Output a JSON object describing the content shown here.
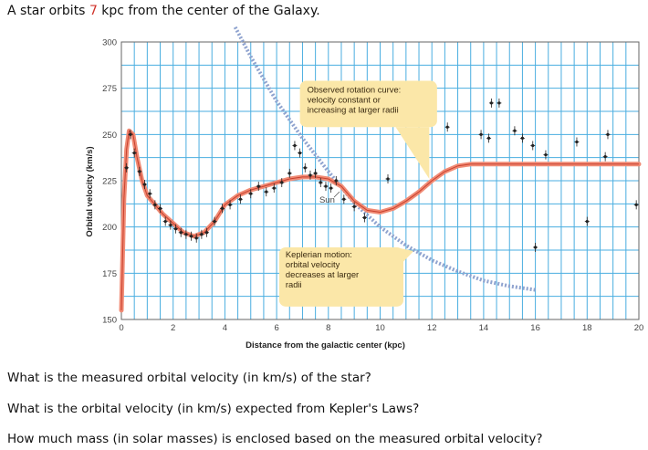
{
  "problem": {
    "intro_before": "A star orbits ",
    "distance_value": "7",
    "intro_after": " kpc from the center of the Galaxy.",
    "highlight_color": "#d0332b"
  },
  "questions": [
    "What is the measured orbital velocity (in km/s) of the star?",
    "What is the orbital velocity (in km/s) expected from Kepler's Laws?",
    "How much mass (in solar masses) is enclosed based on the measured orbital velocity?"
  ],
  "chart_data": {
    "type": "scatter",
    "xlabel": "Distance from the galactic center (kpc)",
    "ylabel": "Orbital velocity (km/s)",
    "xlim": [
      0,
      20
    ],
    "ylim": [
      150,
      300
    ],
    "xticks": [
      0,
      2,
      4,
      6,
      8,
      10,
      12,
      14,
      16,
      18,
      20
    ],
    "yticks": [
      150,
      175,
      200,
      225,
      250,
      275,
      300
    ],
    "grid": true,
    "colors": {
      "grid": "#4aaee0",
      "rotation_curve": "#f08a74",
      "keplerian": "#8fa3cf",
      "callout": "#fbe7a8",
      "points": "#222222"
    },
    "sun_label": "Sun",
    "sun_point": {
      "x": 8.5,
      "y": 220
    },
    "series": [
      {
        "name": "Observed rotation curve",
        "style": "line",
        "x": [
          0,
          0.1,
          0.2,
          0.3,
          0.45,
          0.6,
          0.8,
          1.0,
          1.3,
          1.6,
          2.0,
          2.4,
          2.8,
          3.2,
          3.6,
          4.0,
          4.5,
          5.0,
          5.5,
          6.0,
          6.5,
          7.0,
          7.5,
          8.0,
          8.5,
          9.0,
          9.5,
          10.0,
          10.5,
          11.0,
          11.5,
          12.0,
          12.5,
          13.0,
          13.5,
          14,
          15,
          16,
          17,
          18,
          19,
          20
        ],
        "y": [
          155,
          215,
          242,
          252,
          250,
          238,
          225,
          217,
          212,
          207,
          202,
          197,
          195,
          197,
          203,
          212,
          217,
          220,
          222,
          224,
          226,
          227,
          227,
          226,
          222,
          214,
          209,
          208,
          210,
          214,
          219,
          225,
          230,
          233,
          234,
          234,
          234,
          234,
          234,
          234,
          234,
          234
        ]
      },
      {
        "name": "Keplerian motion",
        "style": "dashed",
        "x": [
          4.4,
          5,
          6,
          7,
          8,
          9,
          10,
          11,
          12,
          13,
          14,
          15,
          16
        ],
        "y": [
          308,
          292,
          268,
          248,
          230,
          213,
          200,
          190,
          182,
          176,
          171,
          168,
          166
        ]
      },
      {
        "name": "Observed data",
        "style": "points",
        "x": [
          0.2,
          0.35,
          0.5,
          0.7,
          0.9,
          1.1,
          1.3,
          1.5,
          1.7,
          1.9,
          2.1,
          2.3,
          2.5,
          2.7,
          2.9,
          3.1,
          3.3,
          3.6,
          3.9,
          4.2,
          4.6,
          5.0,
          5.3,
          5.6,
          5.9,
          6.2,
          6.5,
          6.7,
          6.9,
          7.1,
          7.3,
          7.5,
          7.7,
          7.9,
          8.1,
          8.3,
          8.6,
          9.0,
          9.4,
          10.3,
          12.6,
          13.9,
          14.2,
          14.3,
          14.6,
          15.2,
          15.5,
          15.9,
          16.0,
          16.4,
          17.6,
          18.0,
          18.7,
          18.8,
          19.9
        ],
        "y": [
          232,
          250,
          240,
          230,
          223,
          218,
          212,
          210,
          203,
          201,
          199,
          197,
          196,
          195,
          194,
          196,
          197,
          203,
          210,
          212,
          215,
          218,
          222,
          219,
          221,
          224,
          229,
          244,
          240,
          232,
          228,
          229,
          224,
          222,
          221,
          225,
          215,
          211,
          205,
          226,
          254,
          250,
          248,
          267,
          267,
          252,
          248,
          244,
          189,
          239,
          246,
          203,
          238,
          250,
          212
        ]
      }
    ],
    "annotations": [
      {
        "name": "observed-callout",
        "lines": [
          "Observed rotation curve:",
          "velocity constant or",
          "increasing at larger radii"
        ]
      },
      {
        "name": "keplerian-callout",
        "lines": [
          "Keplerian motion:",
          "orbital velocity",
          "decreases at larger",
          "radii"
        ]
      }
    ]
  }
}
